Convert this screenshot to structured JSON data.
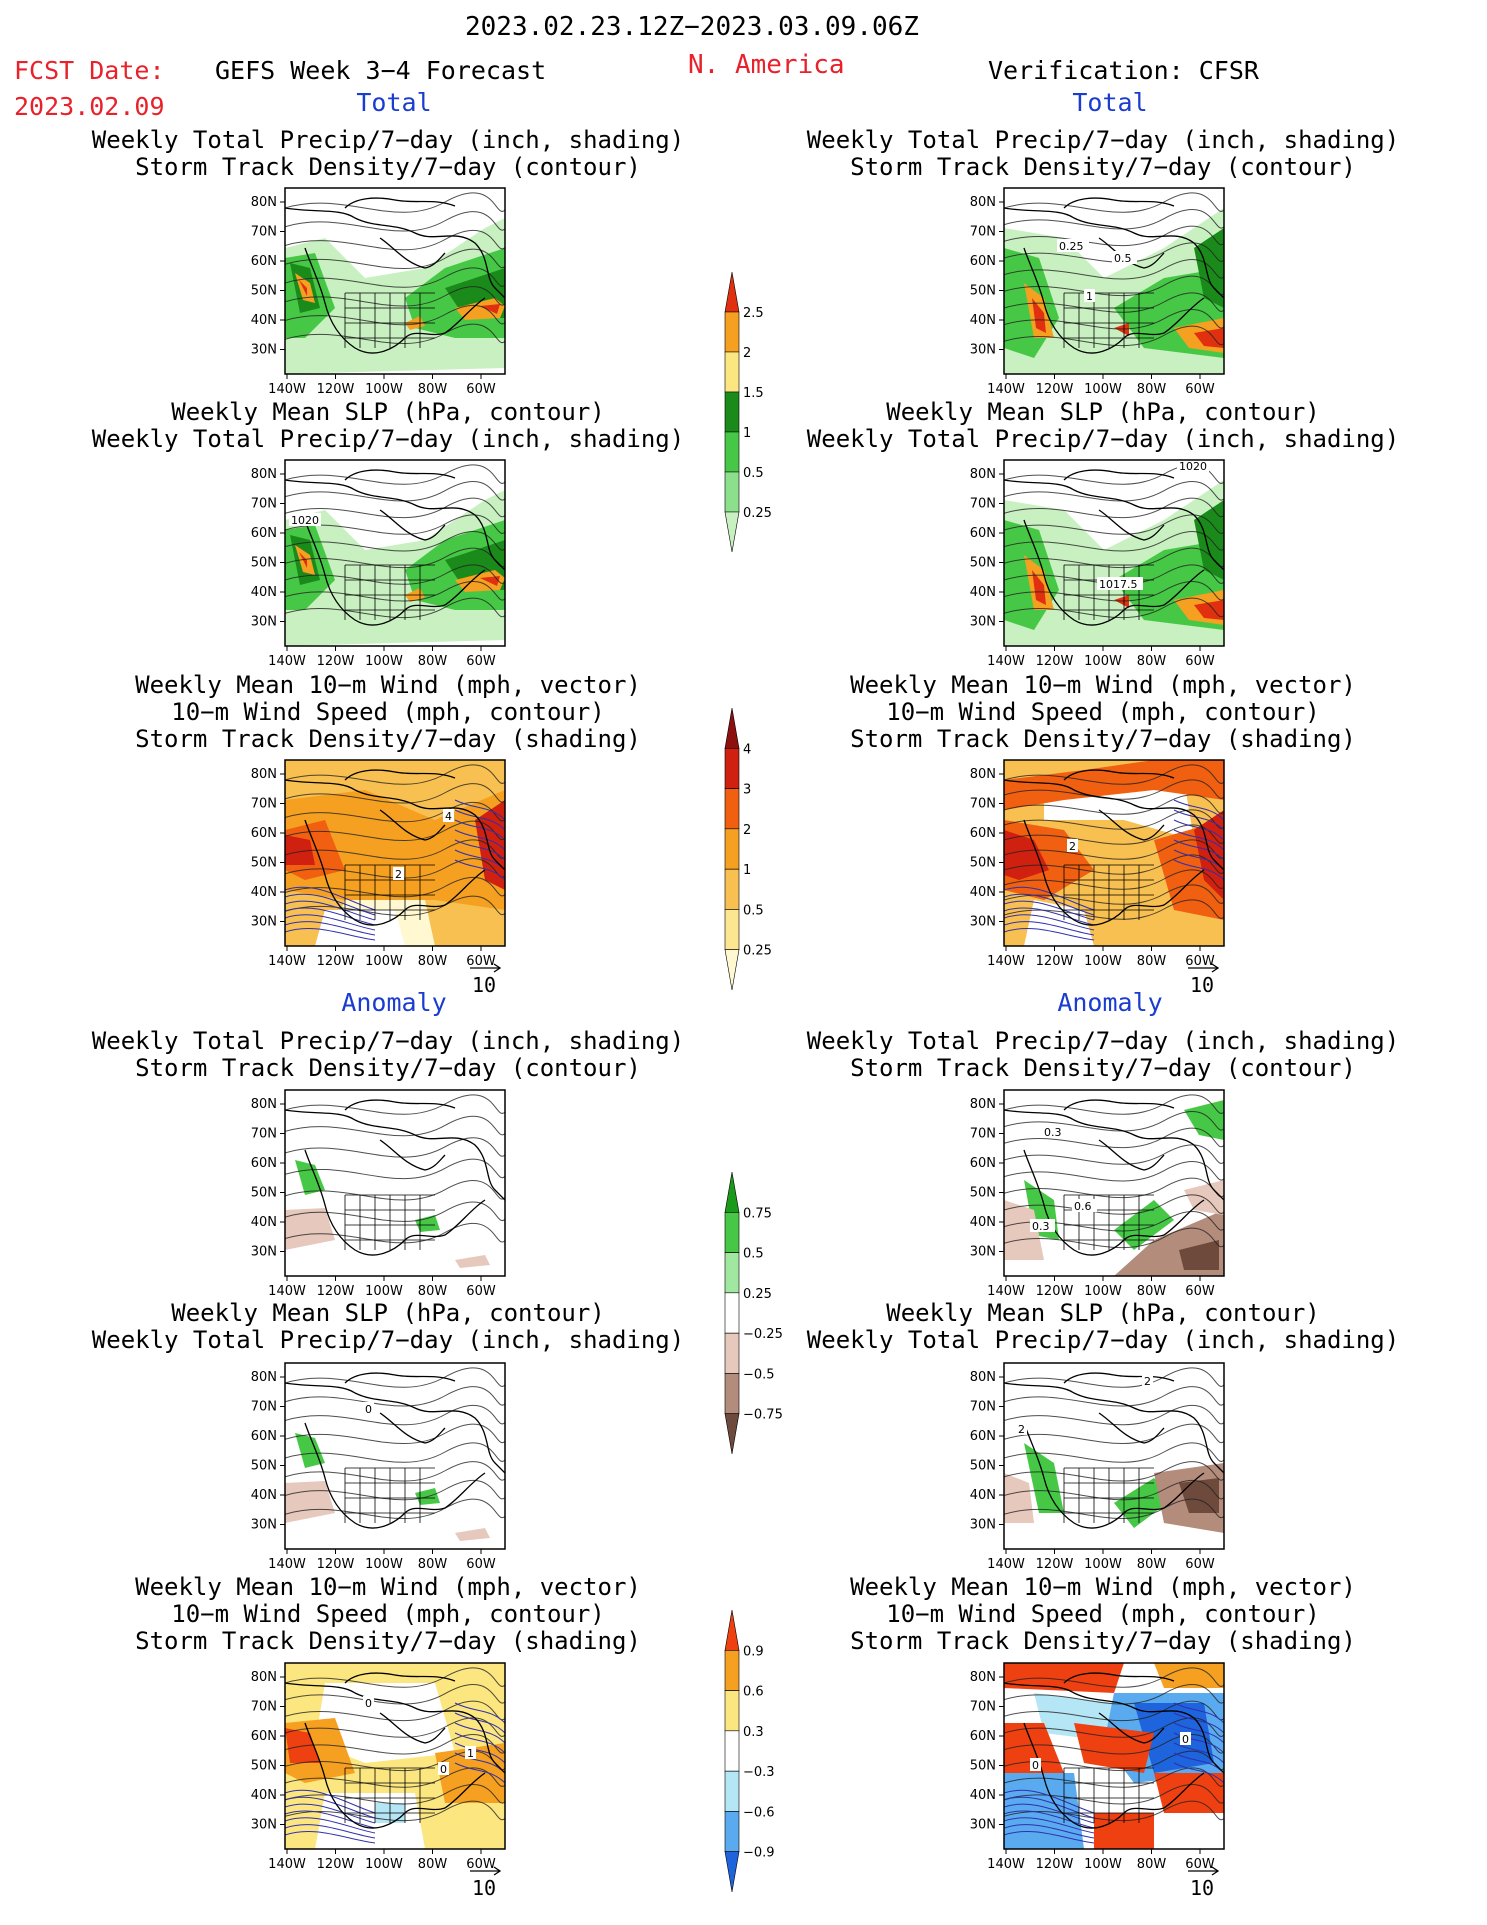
{
  "title": "2023.02.23.12Z−2023.03.09.06Z",
  "region": "N. America",
  "fcst_label": "FCST Date:",
  "fcst_date": "2023.02.09",
  "left_header": "GEFS Week 3−4 Forecast",
  "right_header": "Verification: CFSR",
  "sections": {
    "total": "Total",
    "anomaly": "Anomaly"
  },
  "captions": {
    "precip_storm": [
      "Weekly Total Precip/7−day (inch, shading)",
      "Storm Track Density/7−day (contour)"
    ],
    "slp_precip": [
      "Weekly Mean SLP (hPa, contour)",
      "Weekly Total Precip/7−day (inch, shading)"
    ],
    "wind_storm": [
      "Weekly Mean 10−m Wind (mph, vector)",
      "10−m Wind Speed (mph, contour)",
      "Storm Track Density/7−day (shading)"
    ]
  },
  "map_axes": {
    "lat_labels": [
      "80N",
      "70N",
      "60N",
      "50N",
      "40N",
      "30N"
    ],
    "lon_labels": [
      "140W",
      "120W",
      "100W",
      "80W",
      "60W"
    ]
  },
  "vector_ref": "10",
  "contour_labels": {
    "fcst_total_slp": "1020",
    "fcst_total_wind": [
      "4",
      "2"
    ],
    "fcst_anom_slp": "0",
    "fcst_anom_wind": [
      "0",
      "1",
      "0"
    ],
    "ver_total_storm": [
      "0.25",
      "0.5",
      "1"
    ],
    "ver_total_slp": [
      "1020",
      "1017.5"
    ],
    "ver_total_wind": [
      "2"
    ],
    "ver_anom_storm": [
      "0.3",
      "0.6",
      "0.3"
    ],
    "ver_anom_slp": [
      "2",
      "2"
    ],
    "ver_anom_wind": [
      "0",
      "0"
    ]
  },
  "colorbars": [
    {
      "name": "precip-total",
      "labels": [
        "2.5",
        "2",
        "1.5",
        "1",
        "0.5",
        "0.25"
      ],
      "colors": [
        "#e03010",
        "#f5a020",
        "#fce680",
        "#1a8a1a",
        "#46c846",
        "#8ce08c",
        "#c8f0c0"
      ]
    },
    {
      "name": "storm-total",
      "labels": [
        "4",
        "3",
        "2",
        "1",
        "0.5",
        "0.25"
      ],
      "colors": [
        "#8c1010",
        "#d02010",
        "#f06010",
        "#f5a020",
        "#f8c050",
        "#fce690",
        "#fff8d0"
      ]
    },
    {
      "name": "precip-anomaly",
      "labels": [
        "0.75",
        "0.5",
        "0.25",
        "−0.25",
        "−0.5",
        "−0.75"
      ],
      "colors": [
        "#1a9a1a",
        "#46c846",
        "#a0e8a0",
        "#ffffff",
        "#e6c8bc",
        "#b48c7c",
        "#6e4a3c"
      ]
    },
    {
      "name": "storm-anomaly",
      "labels": [
        "0.9",
        "0.6",
        "0.3",
        "−0.3",
        "−0.6",
        "−0.9"
      ],
      "colors": [
        "#ee4010",
        "#f5a020",
        "#fce680",
        "#ffffff",
        "#b4e6f5",
        "#5aaaf0",
        "#1e64dc"
      ]
    }
  ],
  "colors": {
    "red_text": "#e8212a",
    "blue_text": "#1a3ccf",
    "green_dark": "#1a8a1a",
    "green_mid": "#46c846",
    "green_light": "#c8f0c0",
    "orange": "#f5a020",
    "red": "#e03010",
    "brown": "#b48c7c",
    "blue": "#1e64dc"
  }
}
